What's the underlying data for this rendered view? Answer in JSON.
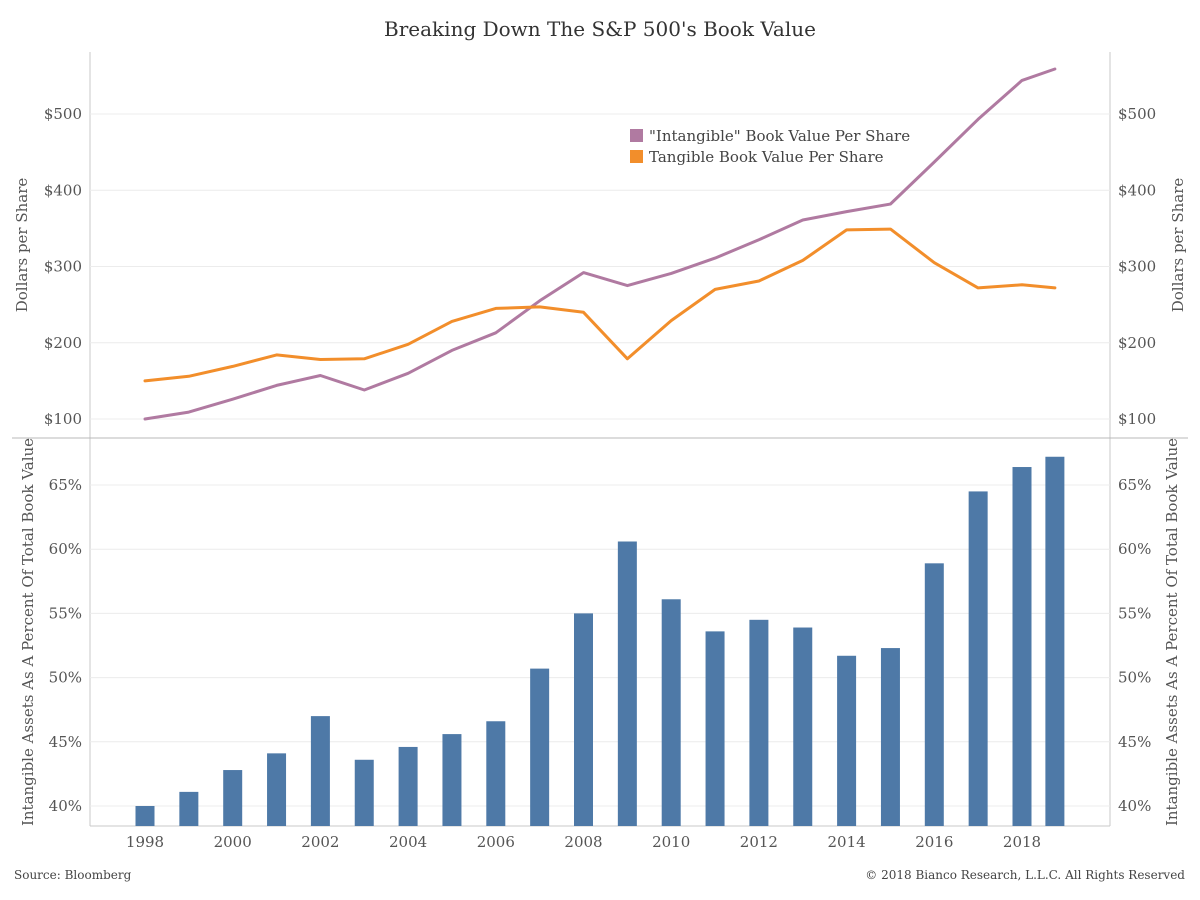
{
  "page": {
    "title": "Breaking Down The S&P 500's Book Value",
    "source": "Source: Bloomberg",
    "copyright": "© 2018 Bianco Research, L.L.C. All Rights Reserved"
  },
  "chart_data": [
    {
      "type": "line",
      "title": "Breaking Down The S&P 500's Book Value",
      "ylabel": "Dollars per Share",
      "ylim": [
        85,
        585
      ],
      "yticks": [
        100,
        200,
        300,
        400,
        500
      ],
      "ytick_labels": [
        "$100",
        "$200",
        "$300",
        "$400",
        "$500"
      ],
      "grid": true,
      "legend_position": "top-right",
      "x": [
        1998,
        1999,
        2000,
        2001,
        2002,
        2003,
        2004,
        2005,
        2006,
        2007,
        2008,
        2009,
        2010,
        2011,
        2012,
        2013,
        2014,
        2015,
        2016,
        2017,
        2018,
        2018.75
      ],
      "series": [
        {
          "name": "\"Intangible\" Book Value Per Share",
          "color": "#b07aa1",
          "values": [
            100,
            109,
            126,
            144,
            157,
            138,
            160,
            190,
            213,
            255,
            292,
            275,
            291,
            311,
            335,
            361,
            372,
            382,
            437,
            493,
            544,
            559
          ]
        },
        {
          "name": "Tangible Book Value Per Share",
          "color": "#f28e2b",
          "values": [
            150,
            156,
            169,
            184,
            178,
            179,
            198,
            228,
            245,
            247,
            240,
            179,
            229,
            270,
            281,
            308,
            348,
            349,
            305,
            272,
            276,
            272
          ]
        }
      ]
    },
    {
      "type": "bar",
      "ylabel": "Intangible Assets As A Percent Of Total Book Value",
      "ylim": [
        38.4,
        68.7
      ],
      "yticks": [
        40,
        45,
        50,
        55,
        60,
        65
      ],
      "ytick_labels": [
        "40%",
        "45%",
        "50%",
        "55%",
        "60%",
        "65%"
      ],
      "grid": true,
      "color": "#4e79a7",
      "x": [
        1998,
        1999,
        2000,
        2001,
        2002,
        2003,
        2004,
        2005,
        2006,
        2007,
        2008,
        2009,
        2010,
        2011,
        2012,
        2013,
        2014,
        2015,
        2016,
        2017,
        2018,
        2018.75
      ],
      "values": [
        40.0,
        41.1,
        42.8,
        44.1,
        47.0,
        43.6,
        44.6,
        45.6,
        46.6,
        50.7,
        55.0,
        60.6,
        56.1,
        53.6,
        54.5,
        53.9,
        51.7,
        52.3,
        58.9,
        64.5,
        66.4,
        67.2
      ],
      "xticks": [
        1998,
        2000,
        2002,
        2004,
        2006,
        2008,
        2010,
        2012,
        2014,
        2016,
        2018
      ],
      "xtick_labels": [
        "1998",
        "2000",
        "2002",
        "2004",
        "2006",
        "2008",
        "2010",
        "2012",
        "2014",
        "2016",
        "2018"
      ]
    }
  ]
}
